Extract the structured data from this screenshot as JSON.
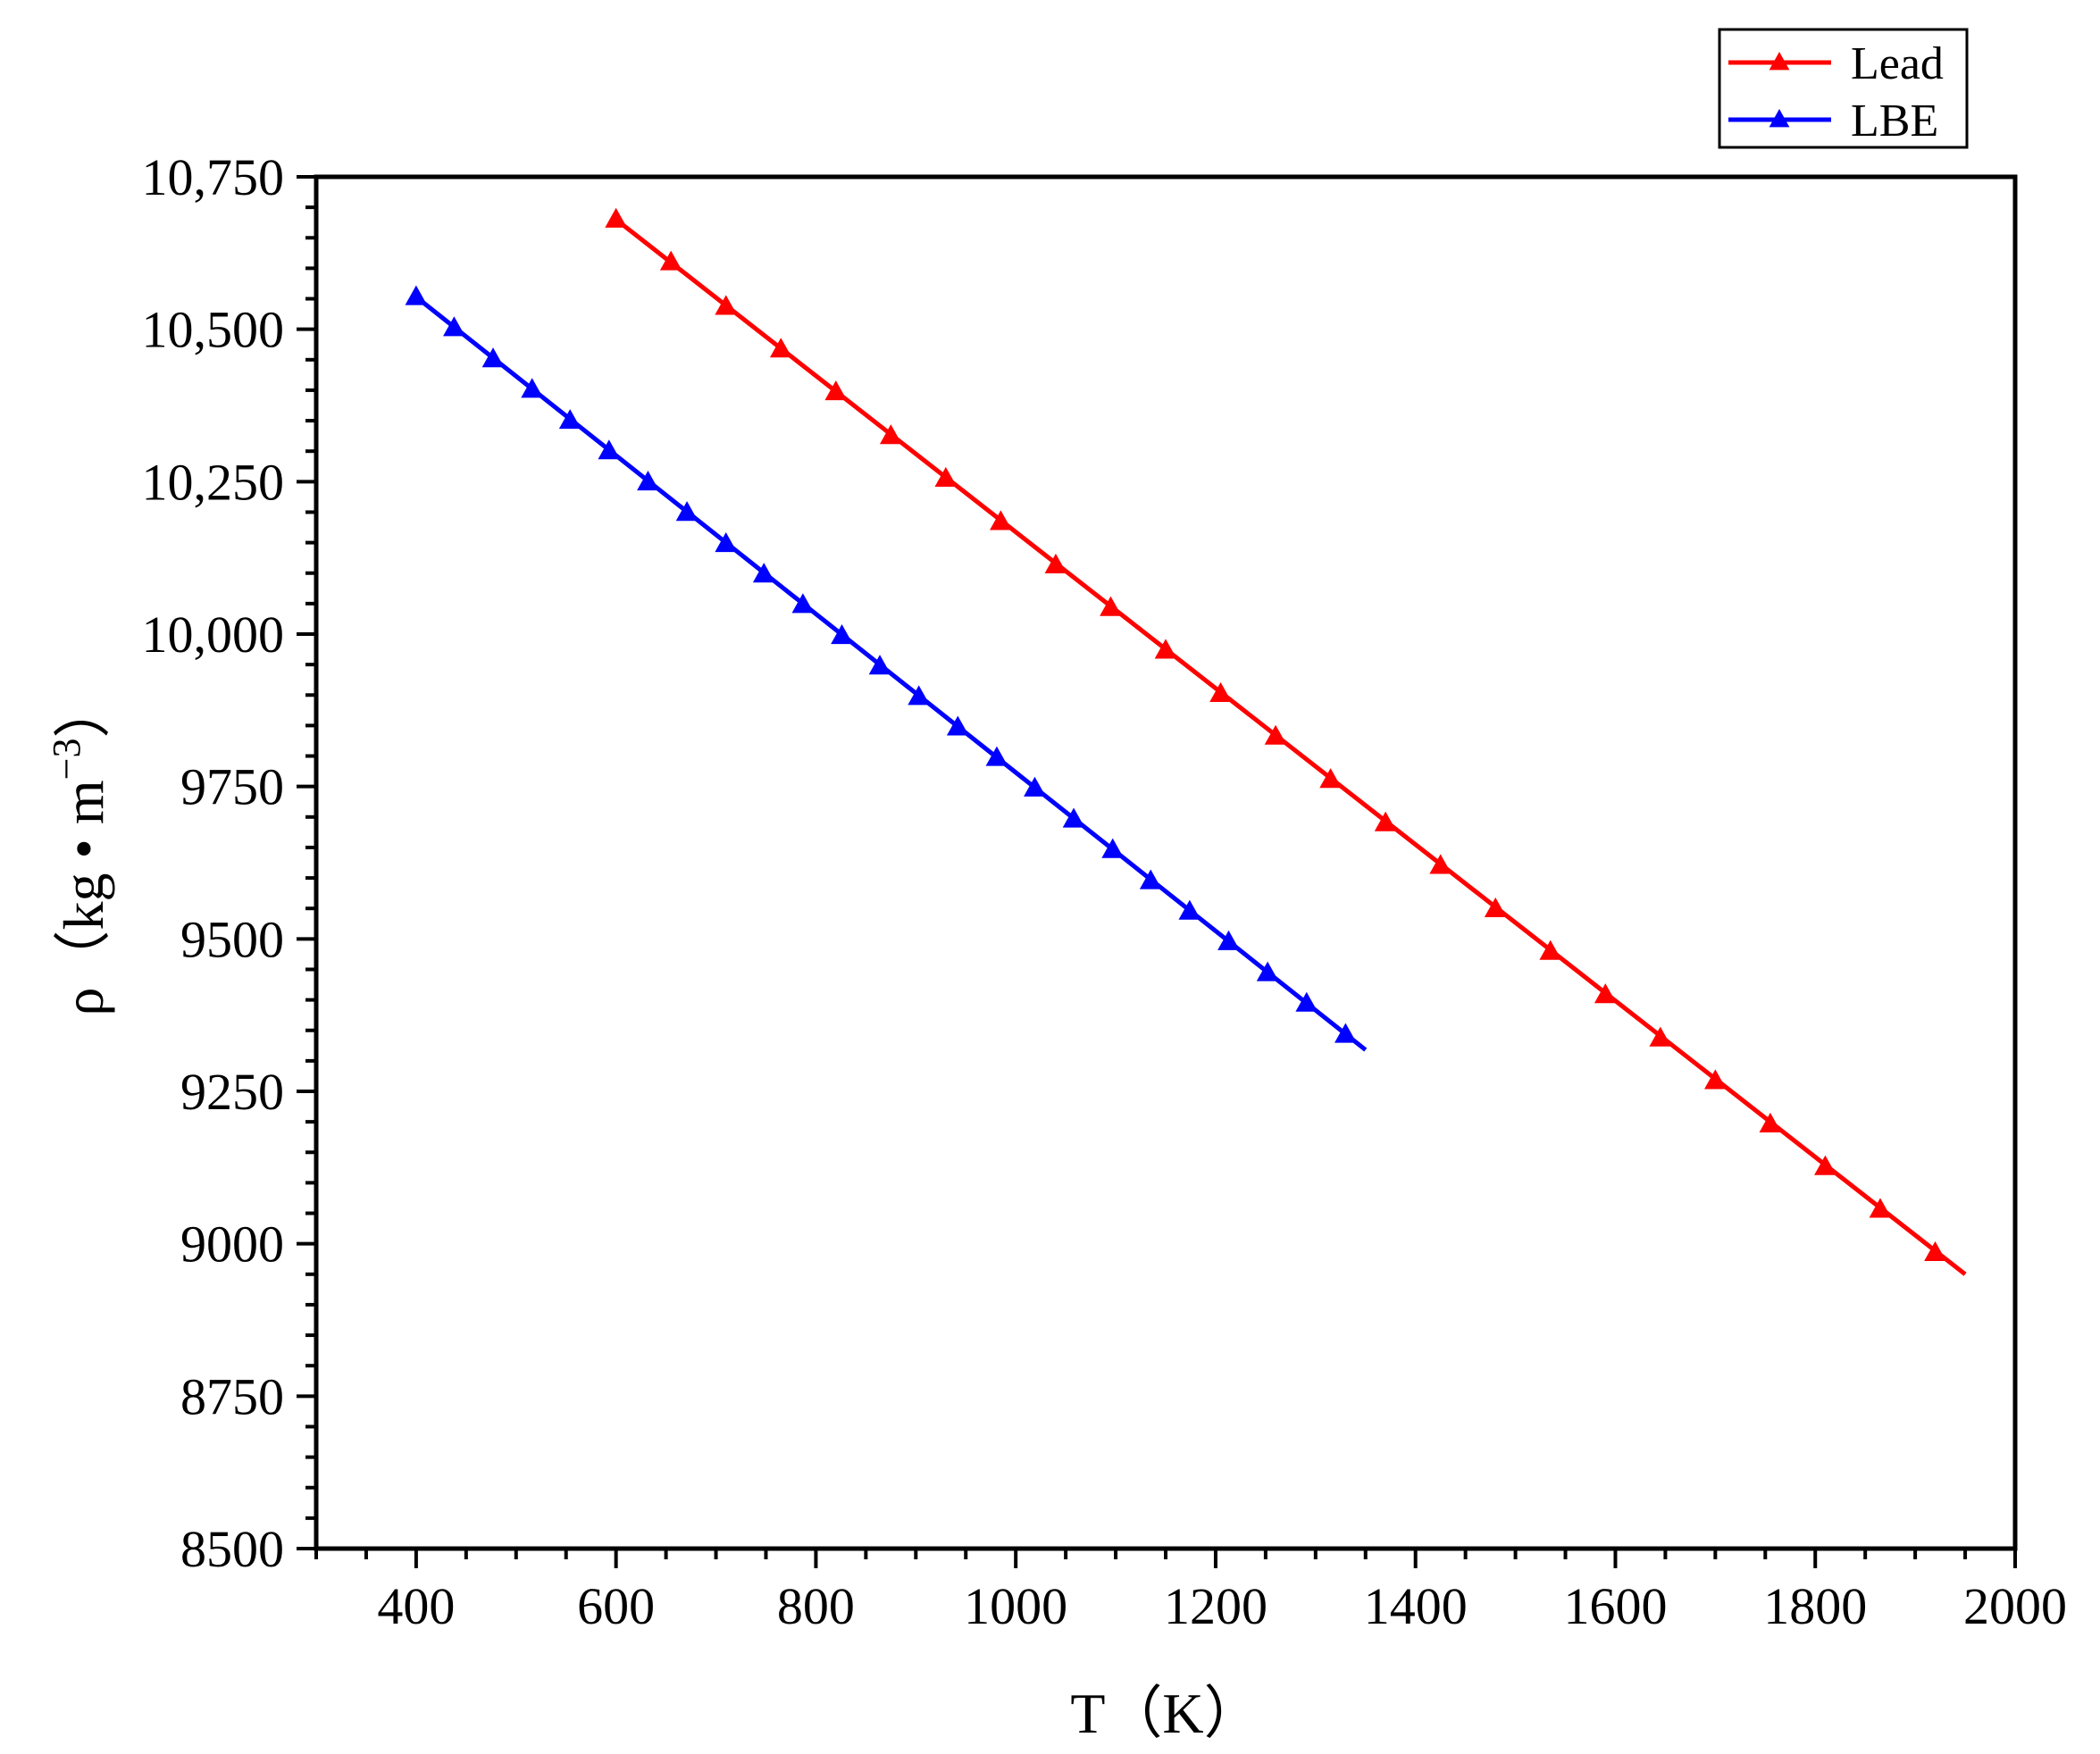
{
  "chart_data": {
    "type": "line",
    "xlabel": "T（K）",
    "ylabel_main": "ρ（kg • m",
    "ylabel_sup": "−3",
    "ylabel_close": "）",
    "xlim": [
      300,
      2000
    ],
    "ylim": [
      8500,
      10750
    ],
    "xticks": [
      400,
      600,
      800,
      1000,
      1200,
      1400,
      1600,
      1800,
      2000
    ],
    "xtick_labels": [
      "400",
      "600",
      "800",
      "1000",
      "1200",
      "1400",
      "1600",
      "1800",
      "2000"
    ],
    "yticks": [
      8500,
      8750,
      9000,
      9250,
      9500,
      9750,
      10000,
      10250,
      10500,
      10750
    ],
    "ytick_labels": [
      "8500",
      "8750",
      "9000",
      "9250",
      "9500",
      "9750",
      "10,000",
      "10,250",
      "10,500",
      "10,750"
    ],
    "legend_position": "top-right, outside plot",
    "grid": false,
    "marker": "triangle",
    "series": [
      {
        "name": "Lead",
        "color": "#ff0000",
        "line": [
          [
            600,
            10680
          ],
          [
            1950,
            8950
          ]
        ],
        "x": [
          600,
          655,
          710,
          765,
          820,
          875,
          930,
          985,
          1040,
          1095,
          1150,
          1205,
          1260,
          1315,
          1370,
          1425,
          1480,
          1535,
          1590,
          1645,
          1700,
          1755,
          1810,
          1865,
          1920
        ],
        "y": [
          10680,
          10610,
          10537,
          10467,
          10397,
          10325,
          10255,
          10184,
          10113,
          10043,
          9973,
          9902,
          9832,
          9761,
          9690,
          9620,
          9549,
          9479,
          9408,
          9337,
          9267,
          9196,
          9126,
          9056,
          8985
        ]
      },
      {
        "name": "LBE",
        "color": "#0000ff",
        "line": [
          [
            400,
            10553
          ],
          [
            1350,
            9318
          ]
        ],
        "x": [
          400,
          438,
          477,
          516,
          554,
          593,
          632,
          671,
          710,
          748,
          787,
          826,
          864,
          903,
          942,
          981,
          1019,
          1058,
          1097,
          1135,
          1174,
          1213,
          1252,
          1291,
          1330
        ],
        "y": [
          10553,
          10502,
          10451,
          10401,
          10350,
          10300,
          10249,
          10199,
          10148,
          10098,
          10048,
          9997,
          9947,
          9897,
          9847,
          9797,
          9747,
          9696,
          9646,
          9595,
          9545,
          9495,
          9444,
          9394,
          9343
        ]
      }
    ]
  }
}
